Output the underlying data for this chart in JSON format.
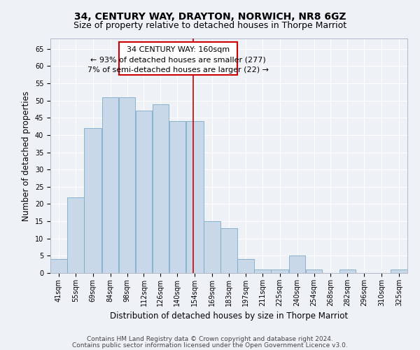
{
  "title": "34, CENTURY WAY, DRAYTON, NORWICH, NR8 6GZ",
  "subtitle": "Size of property relative to detached houses in Thorpe Marriot",
  "xlabel": "Distribution of detached houses by size in Thorpe Marriot",
  "ylabel": "Number of detached properties",
  "footnote1": "Contains HM Land Registry data © Crown copyright and database right 2024.",
  "footnote2": "Contains public sector information licensed under the Open Government Licence v3.0.",
  "bar_labels": [
    "41sqm",
    "55sqm",
    "69sqm",
    "84sqm",
    "98sqm",
    "112sqm",
    "126sqm",
    "140sqm",
    "154sqm",
    "169sqm",
    "183sqm",
    "197sqm",
    "211sqm",
    "225sqm",
    "240sqm",
    "254sqm",
    "268sqm",
    "282sqm",
    "296sqm",
    "310sqm",
    "325sqm"
  ],
  "bar_values": [
    4,
    22,
    42,
    51,
    51,
    47,
    49,
    44,
    44,
    15,
    13,
    4,
    1,
    1,
    5,
    1,
    0,
    1,
    0,
    0,
    1
  ],
  "bar_color": "#c8d8e8",
  "bar_edge_color": "#7aaac8",
  "property_line_x": 160,
  "bin_edges": [
    41,
    55,
    69,
    84,
    98,
    112,
    126,
    140,
    154,
    169,
    183,
    197,
    211,
    225,
    240,
    254,
    268,
    282,
    296,
    310,
    325,
    339
  ],
  "annotation_title": "34 CENTURY WAY: 160sqm",
  "annotation_line1": "← 93% of detached houses are smaller (277)",
  "annotation_line2": "7% of semi-detached houses are larger (22) →",
  "vline_color": "#cc0000",
  "ylim": [
    0,
    68
  ],
  "yticks": [
    0,
    5,
    10,
    15,
    20,
    25,
    30,
    35,
    40,
    45,
    50,
    55,
    60,
    65
  ],
  "bg_color": "#eef2f7",
  "grid_color": "#ffffff",
  "title_fontsize": 10,
  "subtitle_fontsize": 9,
  "axis_label_fontsize": 8.5,
  "tick_fontsize": 7,
  "annotation_fontsize": 8,
  "footnote_fontsize": 6.5
}
